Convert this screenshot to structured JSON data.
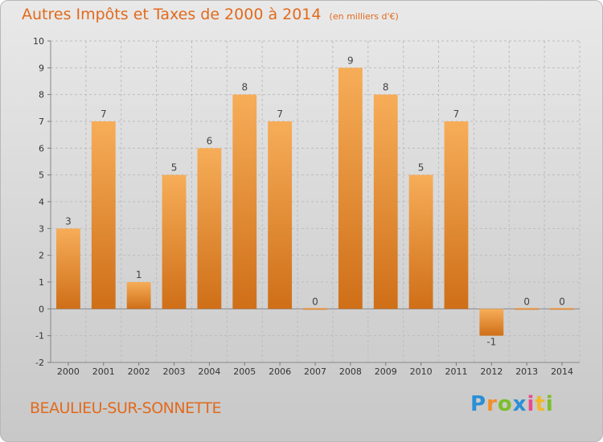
{
  "header": {
    "title": "Autres Impôts et Taxes de 2000 à 2014",
    "subtitle": "(en milliers d'€)"
  },
  "footer": {
    "commune": "BEAULIEU-SUR-SONNETTE"
  },
  "logo": {
    "letters": [
      "P",
      "r",
      "o",
      "x",
      "i",
      "t",
      "i"
    ],
    "colors": [
      "#2b8fd6",
      "#f0902a",
      "#7bbf2a",
      "#2b8fd6",
      "#e94a8c",
      "#f0b82a",
      "#7bbf2a"
    ]
  },
  "colors": {
    "bar_light": "#f6a850",
    "bar_dark": "#d2731c",
    "text": "#e26a1c",
    "grid": "#bdbdbd"
  },
  "chart_data": {
    "type": "bar",
    "categories": [
      "2000",
      "2001",
      "2002",
      "2003",
      "2004",
      "2005",
      "2006",
      "2007",
      "2008",
      "2009",
      "2010",
      "2011",
      "2012",
      "2013",
      "2014"
    ],
    "values": [
      3,
      7,
      1,
      5,
      6,
      8,
      7,
      0,
      9,
      8,
      5,
      7,
      -1,
      0,
      0
    ],
    "data_labels": [
      "3",
      "7",
      "1",
      "5",
      "6",
      "8",
      "7",
      "0",
      "9",
      "8",
      "5",
      "7",
      "-1",
      "0",
      "0"
    ],
    "ylim": [
      -2,
      10
    ],
    "yticks": [
      -2,
      -1,
      0,
      1,
      2,
      3,
      4,
      5,
      6,
      7,
      8,
      9,
      10
    ],
    "grid": true
  }
}
